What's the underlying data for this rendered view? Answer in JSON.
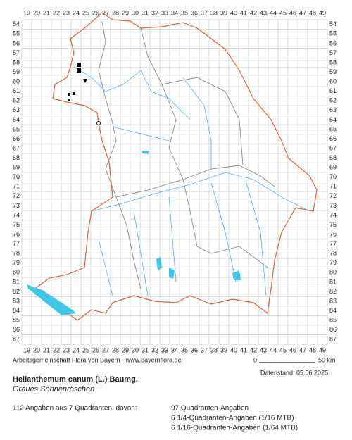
{
  "grid": {
    "columns": [
      19,
      20,
      21,
      22,
      23,
      24,
      25,
      26,
      27,
      28,
      29,
      30,
      31,
      32,
      33,
      34,
      35,
      36,
      37,
      38,
      39,
      40,
      41,
      42,
      43,
      44,
      45,
      46,
      47,
      48,
      49
    ],
    "rows": [
      54,
      55,
      56,
      57,
      58,
      59,
      60,
      61,
      62,
      63,
      64,
      65,
      66,
      67,
      68,
      69,
      70,
      71,
      72,
      73,
      74,
      75,
      76,
      77,
      78,
      79,
      80,
      81,
      82,
      83,
      84,
      85,
      86,
      87
    ]
  },
  "footer": {
    "credit": "Arbeitsgemeinschaft Flora von Bayern - www.bayernflora.de",
    "scale_start": "0",
    "scale_end": "50 km",
    "date": "Datenstand: 05.06.2025"
  },
  "species": {
    "scientific": "Helianthemum canum (L.) Baumg.",
    "common": "Graues Sonnenröschen"
  },
  "stats": {
    "summary": "112 Angaben aus 7 Quadranten, davon:",
    "lines": [
      "97 Quadranten-Angaben",
      "6 1/4-Quadranten-Angaben (1/16 MTB)",
      "6 1/16-Quadranten-Angaben (1/64 MTB)"
    ]
  }
}
